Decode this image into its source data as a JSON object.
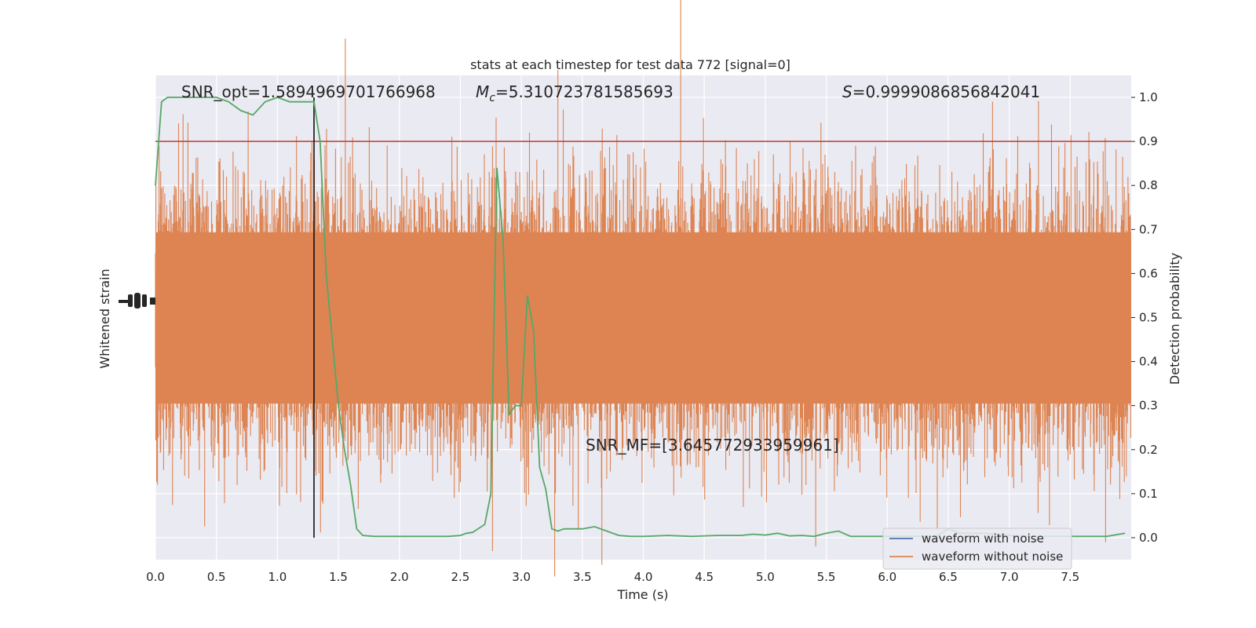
{
  "chart_data": {
    "type": "line",
    "title": "stats at each timestep for test data 772 [signal=0]",
    "xlabel": "Time (s)",
    "ylabel_left": "Whitened strain",
    "ylabel_right": "Detection probability",
    "xlim": [
      0.0,
      8.0
    ],
    "ylim_right": [
      -0.05,
      1.05
    ],
    "x_ticks": [
      "0.0",
      "0.5",
      "1.0",
      "1.5",
      "2.0",
      "2.5",
      "3.0",
      "3.5",
      "4.0",
      "4.5",
      "5.0",
      "5.5",
      "6.0",
      "6.5",
      "7.0",
      "7.5"
    ],
    "y_ticks_right": [
      "0.0",
      "0.1",
      "0.2",
      "0.3",
      "0.4",
      "0.5",
      "0.6",
      "0.7",
      "0.8",
      "0.9",
      "1.0"
    ],
    "grid": true,
    "legend_position": "lower-right",
    "threshold": 0.9,
    "threshold_color": "#c0392b",
    "marker_time": 1.3,
    "series": [
      {
        "name": "waveform with noise",
        "color": "#4c72b0",
        "values": []
      },
      {
        "name": "waveform without noise",
        "color": "#dd8452",
        "style": "dense-noise band"
      },
      {
        "color": "#55a868",
        "x": [
          0.0,
          0.05,
          0.1,
          0.2,
          0.3,
          0.4,
          0.5,
          0.6,
          0.7,
          0.8,
          0.9,
          1.0,
          1.1,
          1.2,
          1.3,
          1.35,
          1.4,
          1.45,
          1.5,
          1.55,
          1.6,
          1.65,
          1.7,
          1.8,
          1.9,
          2.0,
          2.1,
          2.2,
          2.3,
          2.4,
          2.5,
          2.55,
          2.6,
          2.7,
          2.75,
          2.8,
          2.85,
          2.9,
          2.95,
          3.0,
          3.05,
          3.1,
          3.15,
          3.2,
          3.25,
          3.3,
          3.35,
          3.4,
          3.5,
          3.6,
          3.7,
          3.8,
          3.9,
          4.0,
          4.2,
          4.4,
          4.6,
          4.8,
          4.9,
          5.0,
          5.1,
          5.2,
          5.3,
          5.4,
          5.5,
          5.6,
          5.7,
          5.8,
          6.0,
          6.2,
          6.4,
          6.5,
          6.6,
          6.8,
          7.0,
          7.2,
          7.4,
          7.6,
          7.8,
          7.95
        ],
        "y": [
          0.8,
          0.99,
          1.0,
          1.0,
          1.0,
          1.0,
          1.0,
          0.99,
          0.97,
          0.96,
          0.99,
          1.0,
          0.99,
          0.99,
          0.99,
          0.9,
          0.6,
          0.45,
          0.3,
          0.2,
          0.12,
          0.02,
          0.005,
          0.003,
          0.003,
          0.003,
          0.003,
          0.003,
          0.003,
          0.003,
          0.005,
          0.01,
          0.012,
          0.03,
          0.1,
          0.84,
          0.68,
          0.28,
          0.3,
          0.3,
          0.55,
          0.47,
          0.16,
          0.11,
          0.02,
          0.015,
          0.02,
          0.02,
          0.02,
          0.025,
          0.015,
          0.005,
          0.003,
          0.003,
          0.005,
          0.003,
          0.005,
          0.005,
          0.008,
          0.006,
          0.01,
          0.004,
          0.005,
          0.003,
          0.01,
          0.015,
          0.003,
          0.003,
          0.003,
          0.003,
          0.003,
          0.02,
          0.01,
          0.01,
          0.005,
          0.003,
          0.003,
          0.003,
          0.003,
          0.01
        ]
      }
    ],
    "annotations": {
      "snr_opt": "SNR_opt=1.5894969701766968",
      "mc_symbol": "M",
      "mc_sub": "c",
      "mc_value": "=5.310723781585693",
      "s_symbol": "S",
      "s_value": "=0.9999086856842041",
      "snr_mf": "SNR_MF=[3.645772933959961]"
    }
  }
}
